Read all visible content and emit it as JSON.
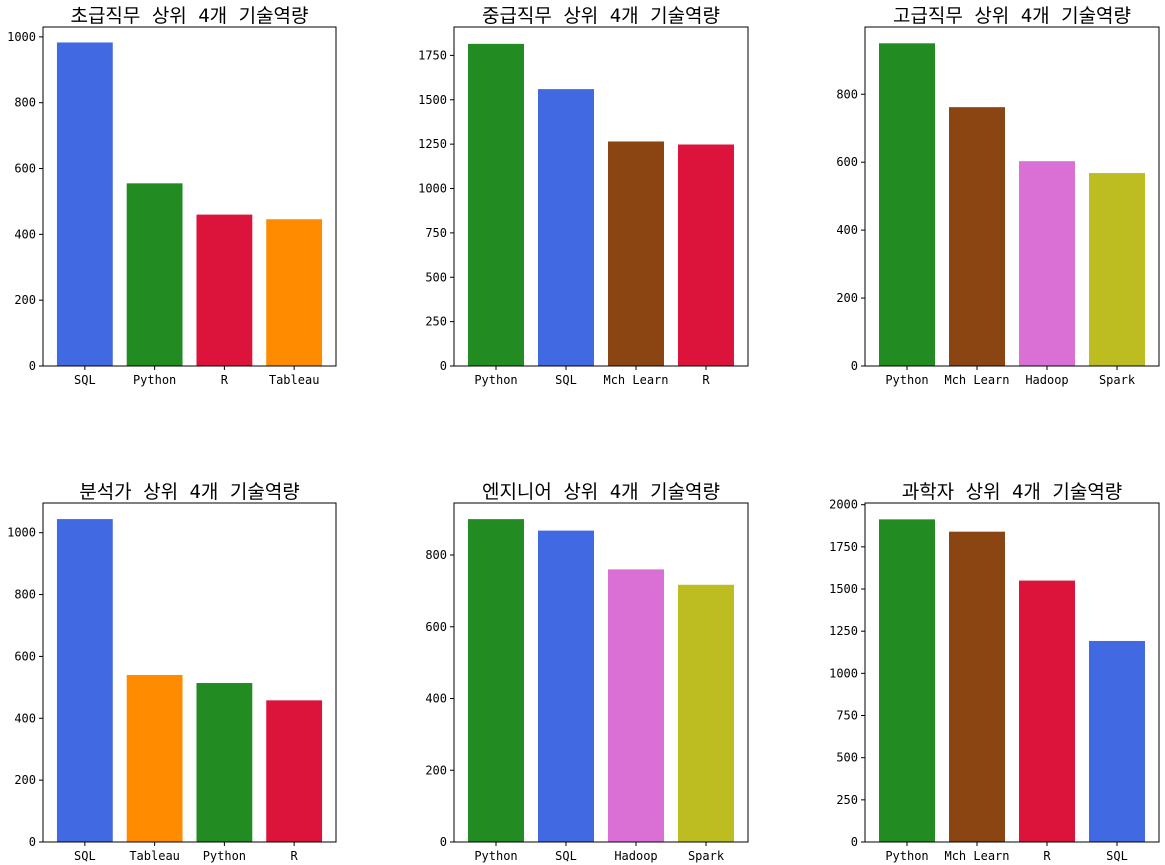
{
  "chart_data": [
    {
      "type": "bar",
      "title": "초급직무 상위 4개 기술역량",
      "categories": [
        "SQL",
        "Python",
        "R",
        "Tableau"
      ],
      "values": [
        983,
        555,
        460,
        446
      ],
      "colors": [
        "#4169e1",
        "#228b22",
        "#dc143c",
        "#ff8c00"
      ],
      "ylim": [
        0,
        1030
      ],
      "yticks": [
        0,
        200,
        400,
        600,
        800,
        1000
      ],
      "ytick_labels": [
        "0",
        "200",
        "400",
        "600",
        "800",
        "1000"
      ]
    },
    {
      "type": "bar",
      "title": "중급직무 상위 4개 기술역량",
      "categories": [
        "Python",
        "SQL",
        "Mch Learn",
        "R"
      ],
      "values": [
        1815,
        1560,
        1265,
        1248
      ],
      "colors": [
        "#228b22",
        "#4169e1",
        "#8b4513",
        "#dc143c"
      ],
      "ylim": [
        0,
        1910
      ],
      "yticks": [
        0,
        250,
        500,
        750,
        1000,
        1250,
        1500,
        1750
      ],
      "ytick_labels": [
        "0",
        "250",
        "500",
        "750",
        "1000",
        "1250",
        "1500",
        "1750"
      ]
    },
    {
      "type": "bar",
      "title": "고급직무 상위 4개 기술역량",
      "categories": [
        "Python",
        "Mch Learn",
        "Hadoop",
        "Spark"
      ],
      "values": [
        950,
        762,
        603,
        568
      ],
      "colors": [
        "#228b22",
        "#8b4513",
        "#da70d6",
        "#bdbd22"
      ],
      "ylim": [
        0,
        998
      ],
      "yticks": [
        0,
        200,
        400,
        600,
        800
      ],
      "ytick_labels": [
        "0",
        "200",
        "400",
        "600",
        "800"
      ]
    },
    {
      "type": "bar",
      "title": "분석가 상위 4개 기술역량",
      "categories": [
        "SQL",
        "Tableau",
        "Python",
        "R"
      ],
      "values": [
        1044,
        540,
        514,
        458
      ],
      "colors": [
        "#4169e1",
        "#ff8c00",
        "#228b22",
        "#dc143c"
      ],
      "ylim": [
        0,
        1096
      ],
      "yticks": [
        0,
        200,
        400,
        600,
        800,
        1000
      ],
      "ytick_labels": [
        "0",
        "200",
        "400",
        "600",
        "800",
        "1000"
      ]
    },
    {
      "type": "bar",
      "title": "엔지니어 상위 4개 기술역량",
      "categories": [
        "Python",
        "SQL",
        "Hadoop",
        "Spark"
      ],
      "values": [
        900,
        868,
        760,
        717
      ],
      "colors": [
        "#228b22",
        "#4169e1",
        "#da70d6",
        "#bdbd22"
      ],
      "ylim": [
        0,
        945
      ],
      "yticks": [
        0,
        200,
        400,
        600,
        800
      ],
      "ytick_labels": [
        "0",
        "200",
        "400",
        "600",
        "800"
      ]
    },
    {
      "type": "bar",
      "title": "과학자 상위 4개 기술역량",
      "categories": [
        "Python",
        "Mch Learn",
        "R",
        "SQL"
      ],
      "values": [
        1913,
        1840,
        1550,
        1192
      ],
      "colors": [
        "#228b22",
        "#8b4513",
        "#dc143c",
        "#4169e1"
      ],
      "ylim": [
        0,
        2010
      ],
      "yticks": [
        0,
        250,
        500,
        750,
        1000,
        1250,
        1500,
        1750,
        2000
      ],
      "ytick_labels": [
        "0",
        "250",
        "500",
        "750",
        "1000",
        "1250",
        "1500",
        "1750",
        "2000"
      ]
    }
  ]
}
